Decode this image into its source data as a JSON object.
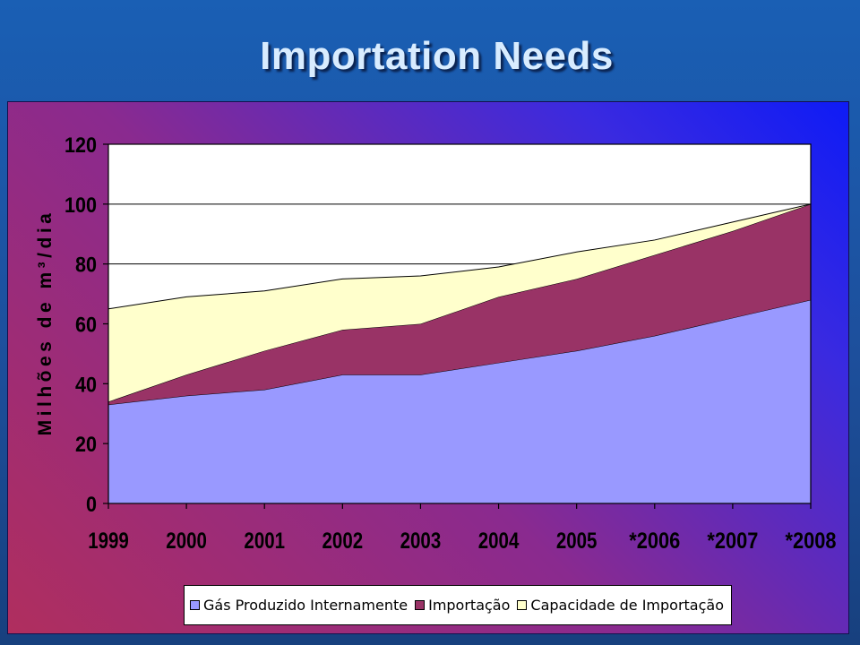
{
  "slide": {
    "title": "Importation Needs"
  },
  "chart_data": {
    "type": "area",
    "title": "",
    "xlabel": "",
    "ylabel": "Milhões de m³/dia",
    "x": [
      "1999",
      "2000",
      "2001",
      "2002",
      "2003",
      "2004",
      "2005",
      "*2006",
      "*2007",
      "*2008"
    ],
    "ylim": [
      0,
      120
    ],
    "yticks": [
      "0",
      "20",
      "40",
      "60",
      "80",
      "100",
      "120"
    ],
    "stacked": true,
    "grid": "horizontal",
    "legend": "bottom",
    "series": [
      {
        "name": "Gás Produzido Internamente",
        "color": "#9999ff",
        "values": [
          33,
          36,
          38,
          43,
          43,
          47,
          51,
          56,
          62,
          68
        ]
      },
      {
        "name": "Importação",
        "color": "#993366",
        "values": [
          1,
          7,
          13,
          15,
          17,
          22,
          24,
          27,
          29,
          32
        ]
      },
      {
        "name": "Capacidade de Importação",
        "color": "#ffffcc",
        "values": [
          31,
          26,
          20,
          17,
          16,
          10,
          9,
          5,
          3,
          0
        ]
      }
    ]
  }
}
